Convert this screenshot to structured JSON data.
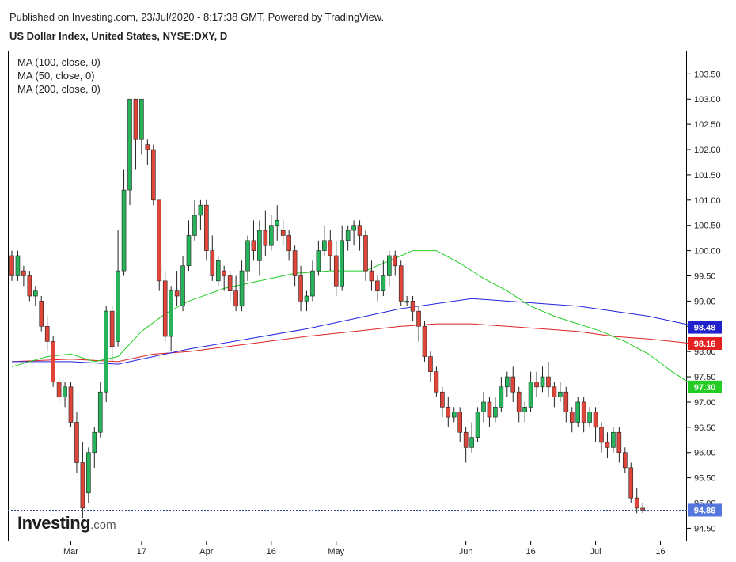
{
  "header": {
    "published": "Published on Investing.com, 23/Jul/2020 - 8:17:38 GMT, Powered by TradingView.",
    "title": "US Dollar Index, United States, NYSE:DXY, D"
  },
  "logo": {
    "main": "Investing",
    "suffix": ".com"
  },
  "chart_data": {
    "type": "candlestick",
    "ylim": [
      94.24,
      103.96
    ],
    "y_ticks": [
      "94.50",
      "95.00",
      "95.50",
      "96.00",
      "96.50",
      "97.00",
      "97.50",
      "98.00",
      "98.50",
      "99.00",
      "99.50",
      "100.00",
      "100.50",
      "101.00",
      "101.50",
      "102.00",
      "102.50",
      "103.00",
      "103.50"
    ],
    "x_ticks": [
      {
        "label": "Mar",
        "i": 10
      },
      {
        "label": "17",
        "i": 22
      },
      {
        "label": "Apr",
        "i": 33
      },
      {
        "label": "16",
        "i": 44
      },
      {
        "label": "May",
        "i": 55
      },
      {
        "label": "Jun",
        "i": 77
      },
      {
        "label": "16",
        "i": 88
      },
      {
        "label": "Jul",
        "i": 99
      },
      {
        "label": "16",
        "i": 110
      }
    ],
    "legend": [
      {
        "name": "MA (100, close, 0)",
        "color": "#2222dd"
      },
      {
        "name": "MA (50, close, 0)",
        "color": "#22cc22"
      },
      {
        "name": "MA (200, close, 0)",
        "color": "#dd2222"
      }
    ],
    "badges": [
      {
        "value": "98.48",
        "color": "#2222cc",
        "y": 98.48
      },
      {
        "value": "98.16",
        "color": "#e52020",
        "y": 98.16
      },
      {
        "value": "97.30",
        "color": "#22cc22",
        "y": 97.3
      },
      {
        "value": "94.86",
        "color": "#5577dd",
        "y": 94.86
      }
    ],
    "last_price": 94.86,
    "candles": [
      [
        99.9,
        99.5,
        100.0,
        99.4
      ],
      [
        99.5,
        99.9,
        100.0,
        99.4
      ],
      [
        99.6,
        99.5,
        99.7,
        99.3
      ],
      [
        99.5,
        99.1,
        99.6,
        99.0
      ],
      [
        99.1,
        99.2,
        99.3,
        98.9
      ],
      [
        99.0,
        98.5,
        99.1,
        98.4
      ],
      [
        98.5,
        98.2,
        98.7,
        98.0
      ],
      [
        98.2,
        97.4,
        98.3,
        97.3
      ],
      [
        97.4,
        97.1,
        97.5,
        97.0
      ],
      [
        97.1,
        97.3,
        97.4,
        96.9
      ],
      [
        97.3,
        96.6,
        97.4,
        96.5
      ],
      [
        96.6,
        95.8,
        96.8,
        95.6
      ],
      [
        95.8,
        94.9,
        96.2,
        94.7
      ],
      [
        95.2,
        96.0,
        96.1,
        95.0
      ],
      [
        96.0,
        96.4,
        96.5,
        95.7
      ],
      [
        96.4,
        97.2,
        97.4,
        96.3
      ],
      [
        97.2,
        98.8,
        98.9,
        97.0
      ],
      [
        98.8,
        98.1,
        98.9,
        97.8
      ],
      [
        98.2,
        99.6,
        100.4,
        98.1
      ],
      [
        99.6,
        101.2,
        101.6,
        99.5
      ],
      [
        101.2,
        103.0,
        103.0,
        100.9
      ],
      [
        103.0,
        102.2,
        103.0,
        101.6
      ],
      [
        102.2,
        103.0,
        103.0,
        101.9
      ],
      [
        102.1,
        102.0,
        102.2,
        101.7
      ],
      [
        102.0,
        101.0,
        102.1,
        100.9
      ],
      [
        101.0,
        99.4,
        101.0,
        99.2
      ],
      [
        99.4,
        98.3,
        99.6,
        98.2
      ],
      [
        98.3,
        99.2,
        99.3,
        98.0
      ],
      [
        99.2,
        99.1,
        99.6,
        98.9
      ],
      [
        98.9,
        99.7,
        99.9,
        98.8
      ],
      [
        99.7,
        100.3,
        100.6,
        99.6
      ],
      [
        100.3,
        100.7,
        101.0,
        100.2
      ],
      [
        100.7,
        100.9,
        101.0,
        100.4
      ],
      [
        100.9,
        100.0,
        101.0,
        99.8
      ],
      [
        100.0,
        99.5,
        100.3,
        99.4
      ],
      [
        99.4,
        99.8,
        99.9,
        99.3
      ],
      [
        99.6,
        99.5,
        99.7,
        99.2
      ],
      [
        99.5,
        99.2,
        99.6,
        99.0
      ],
      [
        99.2,
        98.9,
        99.5,
        98.8
      ],
      [
        98.9,
        99.6,
        99.8,
        98.8
      ],
      [
        99.6,
        100.2,
        100.3,
        99.4
      ],
      [
        100.2,
        100.0,
        100.6,
        99.8
      ],
      [
        99.8,
        100.4,
        100.6,
        99.5
      ],
      [
        100.4,
        100.1,
        100.8,
        99.9
      ],
      [
        100.1,
        100.5,
        100.7,
        100.0
      ],
      [
        100.5,
        100.6,
        100.9,
        100.2
      ],
      [
        100.4,
        100.3,
        100.6,
        100.1
      ],
      [
        100.3,
        100.0,
        100.4,
        99.8
      ],
      [
        100.0,
        99.5,
        100.1,
        99.3
      ],
      [
        99.5,
        99.0,
        99.7,
        98.8
      ],
      [
        99.0,
        99.1,
        99.2,
        98.8
      ],
      [
        99.1,
        99.6,
        99.8,
        99.0
      ],
      [
        99.6,
        100.0,
        100.2,
        99.5
      ],
      [
        100.0,
        100.2,
        100.5,
        99.9
      ],
      [
        100.2,
        99.9,
        100.4,
        99.6
      ],
      [
        99.9,
        99.3,
        100.2,
        99.1
      ],
      [
        99.3,
        100.2,
        100.5,
        99.2
      ],
      [
        100.2,
        100.4,
        100.5,
        100.0
      ],
      [
        100.4,
        100.5,
        100.6,
        100.1
      ],
      [
        100.5,
        100.3,
        100.6,
        100.0
      ],
      [
        100.3,
        99.6,
        100.4,
        99.4
      ],
      [
        99.6,
        99.4,
        99.8,
        99.2
      ],
      [
        99.4,
        99.2,
        99.5,
        99.0
      ],
      [
        99.2,
        99.5,
        99.8,
        99.1
      ],
      [
        99.5,
        99.9,
        100.0,
        99.3
      ],
      [
        99.9,
        99.7,
        100.0,
        99.5
      ],
      [
        99.7,
        99.0,
        99.8,
        98.9
      ],
      [
        99.0,
        99.0,
        99.1,
        98.9
      ],
      [
        99.0,
        98.8,
        99.1,
        98.6
      ],
      [
        98.8,
        98.5,
        98.9,
        98.2
      ],
      [
        98.5,
        97.9,
        98.6,
        97.8
      ],
      [
        97.9,
        97.6,
        98.0,
        97.4
      ],
      [
        97.6,
        97.2,
        97.7,
        97.1
      ],
      [
        97.2,
        96.9,
        97.3,
        96.7
      ],
      [
        96.9,
        96.7,
        97.1,
        96.5
      ],
      [
        96.7,
        96.8,
        96.9,
        96.6
      ],
      [
        96.8,
        96.4,
        96.9,
        96.2
      ],
      [
        96.4,
        96.1,
        96.5,
        95.8
      ],
      [
        96.1,
        96.3,
        96.6,
        96.0
      ],
      [
        96.3,
        96.8,
        96.9,
        96.2
      ],
      [
        96.8,
        97.0,
        97.2,
        96.6
      ],
      [
        97.0,
        96.7,
        97.1,
        96.5
      ],
      [
        96.7,
        96.9,
        97.1,
        96.6
      ],
      [
        96.9,
        97.3,
        97.5,
        96.8
      ],
      [
        97.3,
        97.5,
        97.6,
        97.1
      ],
      [
        97.5,
        97.2,
        97.7,
        97.0
      ],
      [
        97.2,
        96.8,
        97.3,
        96.6
      ],
      [
        96.8,
        96.9,
        97.0,
        96.6
      ],
      [
        96.9,
        97.4,
        97.6,
        96.8
      ],
      [
        97.4,
        97.3,
        97.6,
        97.1
      ],
      [
        97.3,
        97.5,
        97.7,
        97.2
      ],
      [
        97.5,
        97.3,
        97.8,
        97.1
      ],
      [
        97.3,
        97.1,
        97.4,
        96.9
      ],
      [
        97.1,
        97.2,
        97.4,
        97.0
      ],
      [
        97.2,
        96.8,
        97.3,
        96.6
      ],
      [
        96.8,
        96.6,
        96.9,
        96.4
      ],
      [
        96.6,
        97.0,
        97.1,
        96.5
      ],
      [
        97.0,
        96.6,
        97.1,
        96.4
      ],
      [
        96.6,
        96.8,
        96.9,
        96.5
      ],
      [
        96.8,
        96.5,
        96.9,
        96.2
      ],
      [
        96.5,
        96.2,
        96.6,
        96.0
      ],
      [
        96.2,
        96.1,
        96.4,
        95.9
      ],
      [
        96.1,
        96.4,
        96.5,
        96.0
      ],
      [
        96.4,
        96.0,
        96.5,
        95.8
      ],
      [
        96.0,
        95.7,
        96.1,
        95.6
      ],
      [
        95.7,
        95.1,
        95.8,
        95.0
      ],
      [
        95.1,
        94.9,
        95.3,
        94.8
      ],
      [
        94.9,
        94.86,
        95.0,
        94.8
      ]
    ],
    "ma50": [
      [
        0,
        97.7
      ],
      [
        6,
        97.9
      ],
      [
        10,
        97.95
      ],
      [
        14,
        97.8
      ],
      [
        18,
        97.9
      ],
      [
        22,
        98.4
      ],
      [
        26,
        98.75
      ],
      [
        30,
        99.0
      ],
      [
        36,
        99.25
      ],
      [
        42,
        99.4
      ],
      [
        48,
        99.55
      ],
      [
        54,
        99.6
      ],
      [
        60,
        99.6
      ],
      [
        64,
        99.8
      ],
      [
        68,
        100.0
      ],
      [
        72,
        100.0
      ],
      [
        76,
        99.75
      ],
      [
        80,
        99.45
      ],
      [
        84,
        99.2
      ],
      [
        88,
        98.9
      ],
      [
        92,
        98.7
      ],
      [
        96,
        98.55
      ],
      [
        100,
        98.4
      ],
      [
        104,
        98.2
      ],
      [
        108,
        97.95
      ],
      [
        112,
        97.6
      ],
      [
        116,
        97.3
      ]
    ],
    "ma100": [
      [
        0,
        97.8
      ],
      [
        10,
        97.8
      ],
      [
        18,
        97.75
      ],
      [
        24,
        97.9
      ],
      [
        30,
        98.05
      ],
      [
        40,
        98.25
      ],
      [
        50,
        98.45
      ],
      [
        58,
        98.65
      ],
      [
        66,
        98.85
      ],
      [
        72,
        98.95
      ],
      [
        78,
        99.05
      ],
      [
        84,
        99.0
      ],
      [
        90,
        98.95
      ],
      [
        96,
        98.9
      ],
      [
        102,
        98.8
      ],
      [
        108,
        98.7
      ],
      [
        112,
        98.6
      ],
      [
        116,
        98.5
      ]
    ],
    "ma200": [
      [
        0,
        97.8
      ],
      [
        10,
        97.85
      ],
      [
        18,
        97.8
      ],
      [
        24,
        97.95
      ],
      [
        30,
        98.0
      ],
      [
        40,
        98.15
      ],
      [
        50,
        98.3
      ],
      [
        58,
        98.4
      ],
      [
        66,
        98.5
      ],
      [
        72,
        98.55
      ],
      [
        78,
        98.55
      ],
      [
        84,
        98.5
      ],
      [
        90,
        98.45
      ],
      [
        96,
        98.4
      ],
      [
        102,
        98.3
      ],
      [
        108,
        98.25
      ],
      [
        112,
        98.2
      ],
      [
        116,
        98.15
      ]
    ]
  }
}
